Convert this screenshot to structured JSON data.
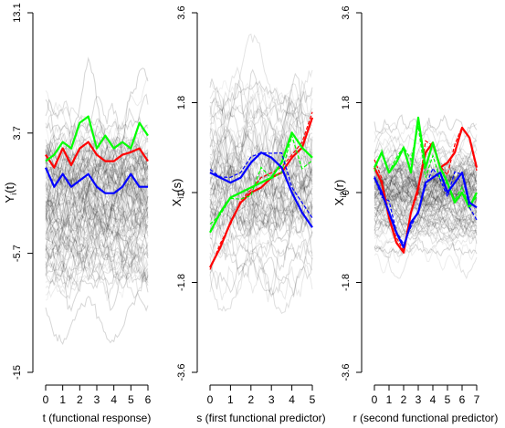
{
  "chart_data": [
    {
      "type": "line",
      "xlabel": "t (functional response)",
      "ylabel": "Y_i(t)",
      "ylabel_main": "Y",
      "ylabel_sub": "i",
      "ylabel_arg": "(t)",
      "xlim": [
        0,
        6
      ],
      "ylim": [
        -15,
        13.1
      ],
      "x_ticks": [
        "0",
        "1",
        "2",
        "3",
        "4",
        "5",
        "6"
      ],
      "y_ticks": [
        "-15",
        "-5.7",
        "3.7",
        "13.1"
      ],
      "grid": false,
      "background_curves": {
        "count": 110,
        "mean": -1,
        "spread": 4.5,
        "color": "#000000"
      },
      "series": [
        {
          "color": "#ff0000",
          "x": [
            0,
            0.5,
            1,
            1.5,
            2,
            2.5,
            3,
            3.5,
            4,
            4.5,
            5,
            5.5,
            6
          ],
          "values": [
            2.0,
            1.0,
            2.5,
            1.2,
            2.5,
            3.0,
            2.0,
            1.5,
            1.5,
            2.0,
            2.2,
            2.5,
            1.5
          ]
        },
        {
          "color": "#00ff00",
          "x": [
            0,
            0.5,
            1,
            1.5,
            2,
            2.5,
            3,
            3.5,
            4,
            4.5,
            5,
            5.5,
            6
          ],
          "values": [
            1.5,
            2.0,
            3.0,
            2.5,
            4.5,
            5.0,
            2.5,
            3.5,
            2.5,
            3.0,
            2.5,
            4.5,
            3.5
          ]
        },
        {
          "color": "#0000ff",
          "x": [
            0,
            0.5,
            1,
            1.5,
            2,
            2.5,
            3,
            3.5,
            4,
            4.5,
            5,
            5.5,
            6
          ],
          "values": [
            1.0,
            -0.5,
            0.5,
            -0.5,
            0,
            0.5,
            -0.5,
            -1.0,
            -1.0,
            -0.5,
            0.5,
            -0.5,
            -0.5
          ]
        }
      ]
    },
    {
      "type": "line",
      "xlabel": "s (first functional predictor)",
      "ylabel": "X_i1(s)",
      "ylabel_main": "X",
      "ylabel_sub": "i1",
      "ylabel_arg": "(s)",
      "xlim": [
        0,
        5
      ],
      "ylim": [
        -3.6,
        3.6
      ],
      "x_ticks": [
        "0",
        "1",
        "2",
        "3",
        "4",
        "5"
      ],
      "y_ticks": [
        "-3.6",
        "-1.8",
        "0",
        "1.8",
        "3.6"
      ],
      "grid": false,
      "background_curves": {
        "count": 70,
        "mean": 0,
        "spread": 1.2,
        "color": "#000000"
      },
      "series": [
        {
          "color": "#ff0000",
          "x": [
            0,
            0.5,
            1,
            1.5,
            2,
            2.5,
            3,
            3.5,
            4,
            4.5,
            5
          ],
          "values": [
            -1.5,
            -1.1,
            -0.6,
            -0.2,
            0.0,
            0.1,
            0.3,
            0.4,
            0.7,
            0.9,
            1.5
          ]
        },
        {
          "color": "#00ff00",
          "x": [
            0,
            0.5,
            1,
            1.5,
            2,
            2.5,
            3,
            3.5,
            4,
            4.5,
            5
          ],
          "values": [
            -0.8,
            -0.4,
            -0.1,
            0.0,
            0.1,
            0.2,
            0.3,
            0.6,
            1.2,
            0.9,
            0.7
          ]
        },
        {
          "color": "#0000ff",
          "x": [
            0,
            0.5,
            1,
            1.5,
            2,
            2.5,
            3,
            3.5,
            4,
            4.5,
            5
          ],
          "values": [
            0.4,
            0.3,
            0.2,
            0.3,
            0.6,
            0.8,
            0.7,
            0.5,
            0.0,
            -0.4,
            -0.7
          ]
        }
      ]
    },
    {
      "type": "line",
      "xlabel": "r (second functional predictor)",
      "ylabel": "X_i2(r)",
      "ylabel_main": "X",
      "ylabel_sub": "i2",
      "ylabel_arg": "(r)",
      "xlim": [
        0,
        7
      ],
      "ylim": [
        -3.6,
        3.6
      ],
      "x_ticks": [
        "0",
        "1",
        "2",
        "3",
        "4",
        "5",
        "6",
        "7"
      ],
      "y_ticks": [
        "-3.6",
        "-1.8",
        "0",
        "1.8",
        "3.6"
      ],
      "grid": false,
      "background_curves": {
        "count": 110,
        "mean": 0,
        "spread": 0.7,
        "color": "#000000"
      },
      "series": [
        {
          "color": "#ff0000",
          "x": [
            0,
            0.5,
            1,
            1.5,
            2,
            2.5,
            3,
            3.5,
            4,
            4.5,
            5,
            5.5,
            6,
            6.5,
            7
          ],
          "values": [
            0.5,
            0.2,
            -0.5,
            -1.0,
            -1.2,
            -0.4,
            0.1,
            0.8,
            1.0,
            0.5,
            0.6,
            0.8,
            1.3,
            1.1,
            0.5
          ]
        },
        {
          "color": "#00ff00",
          "x": [
            0,
            0.5,
            1,
            1.5,
            2,
            2.5,
            3,
            3.5,
            4,
            4.5,
            5,
            5.5,
            6,
            6.5,
            7
          ],
          "values": [
            0.5,
            0.8,
            0.4,
            0.6,
            0.9,
            0.4,
            1.5,
            0.5,
            1.0,
            0.5,
            0.2,
            -0.2,
            0.0,
            -0.3,
            0.0
          ]
        },
        {
          "color": "#0000ff",
          "x": [
            0,
            0.5,
            1,
            1.5,
            2,
            2.5,
            3,
            3.5,
            4,
            4.5,
            5,
            5.5,
            6,
            6.5,
            7
          ],
          "values": [
            0.3,
            0.0,
            -0.4,
            -0.8,
            -1.1,
            -0.6,
            -0.4,
            0.2,
            0.3,
            0.4,
            0.0,
            0.2,
            0.4,
            -0.2,
            -0.3
          ]
        }
      ]
    }
  ]
}
